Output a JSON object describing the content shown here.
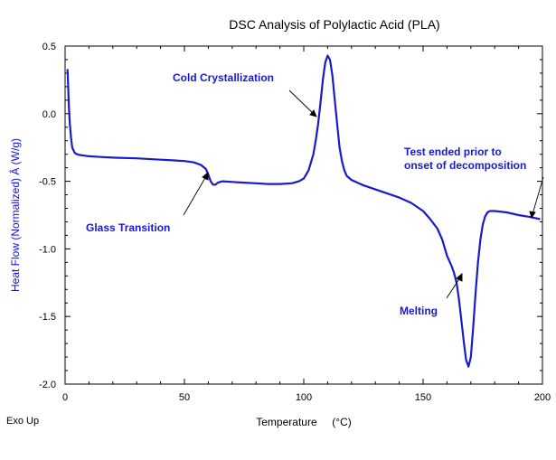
{
  "chart_data": {
    "type": "line",
    "title": "DSC Analysis of Polylactic Acid (PLA)",
    "xlabel": "Temperature     (°C)",
    "ylabel": "Heat Flow (Normalized)  Â  (W/g)",
    "corner_label": "Exo Up",
    "xlim": [
      0,
      200
    ],
    "ylim": [
      -2.0,
      0.5
    ],
    "x_ticks": [
      0,
      50,
      100,
      150,
      200
    ],
    "y_ticks": [
      0.5,
      0.0,
      -0.5,
      -1.0,
      -1.5,
      -2.0
    ],
    "x_tick_labels": [
      "0",
      "50",
      "100",
      "150",
      "200"
    ],
    "y_tick_labels": [
      "0.5",
      "0.0",
      "-0.5",
      "-1.0",
      "-1.5",
      "-2.0"
    ],
    "line_color": "#1a1acc",
    "series": [
      {
        "x": [
          1.0,
          1.1,
          1.3,
          1.6,
          2.0,
          2.5,
          3.0,
          4.0,
          5.0,
          6.0,
          8.0,
          10,
          15,
          20,
          30,
          40,
          45,
          50,
          54,
          57,
          59,
          60,
          61,
          62,
          63,
          64,
          66,
          70,
          75,
          80,
          85,
          90,
          95,
          98,
          100,
          102,
          104,
          105,
          106,
          107,
          108,
          109,
          110,
          111,
          112,
          113,
          114,
          115,
          116,
          117,
          118,
          120,
          125,
          130,
          135,
          140,
          145,
          150,
          153,
          156,
          158,
          160,
          162,
          163,
          164,
          165,
          166,
          167,
          168,
          169,
          170,
          171,
          172,
          173,
          174,
          175,
          176,
          177,
          178,
          180,
          185,
          190,
          195,
          199
        ],
        "y": [
          0.33,
          0.3,
          0.2,
          0.05,
          -0.08,
          -0.18,
          -0.25,
          -0.29,
          -0.3,
          -0.305,
          -0.31,
          -0.315,
          -0.32,
          -0.325,
          -0.33,
          -0.34,
          -0.345,
          -0.35,
          -0.36,
          -0.38,
          -0.41,
          -0.45,
          -0.5,
          -0.525,
          -0.525,
          -0.51,
          -0.5,
          -0.505,
          -0.51,
          -0.515,
          -0.52,
          -0.52,
          -0.515,
          -0.5,
          -0.48,
          -0.42,
          -0.3,
          -0.2,
          -0.08,
          0.08,
          0.25,
          0.38,
          0.43,
          0.4,
          0.28,
          0.1,
          -0.08,
          -0.25,
          -0.35,
          -0.42,
          -0.46,
          -0.49,
          -0.53,
          -0.56,
          -0.59,
          -0.62,
          -0.66,
          -0.72,
          -0.78,
          -0.85,
          -0.93,
          -1.05,
          -1.13,
          -1.18,
          -1.25,
          -1.37,
          -1.52,
          -1.68,
          -1.82,
          -1.87,
          -1.8,
          -1.58,
          -1.32,
          -1.1,
          -0.93,
          -0.82,
          -0.76,
          -0.73,
          -0.72,
          -0.72,
          -0.73,
          -0.75,
          -0.765,
          -0.78
        ]
      }
    ],
    "annotations": [
      {
        "text": "Cold Crystallization",
        "x": 105,
        "y": -0.01
      },
      {
        "text": "Glass Transition",
        "x": 60,
        "y": -0.43
      },
      {
        "text": "Test ended prior to",
        "x": 199,
        "y": -0.78
      },
      {
        "text": "onset of decomposition",
        "x": 199,
        "y": -0.78
      },
      {
        "text": "Melting",
        "x": 165,
        "y": -1.2
      }
    ],
    "grid": false
  }
}
